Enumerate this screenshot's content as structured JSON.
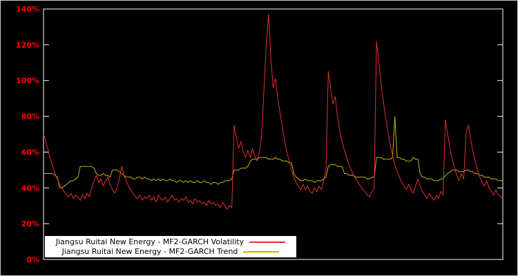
{
  "chart_data": {
    "type": "line",
    "title": "",
    "xlabel": "",
    "ylabel": "",
    "grid": false,
    "legend_position": "bottom-left",
    "background_color": "#000000",
    "border_color": "#ffffff",
    "axis_label_color": "#ff0000",
    "ylim": [
      0,
      140
    ],
    "yticks": [
      0,
      20,
      40,
      60,
      80,
      100,
      120,
      140
    ],
    "ytick_labels": [
      "0%",
      "20%",
      "40%",
      "60%",
      "80%",
      "100%",
      "120%",
      "140%"
    ],
    "series": [
      {
        "name": "Jiangsu Ruitai New Energy - MF2-GARCH Volatility",
        "color": "#e03131",
        "values": [
          70,
          66,
          61,
          56,
          52,
          48,
          45,
          42,
          40,
          38,
          36,
          35,
          37,
          34,
          36,
          35,
          33,
          36,
          34,
          37,
          35,
          40,
          44,
          47,
          43,
          45,
          41,
          44,
          46,
          42,
          39,
          37,
          40,
          45,
          52,
          47,
          44,
          41,
          39,
          37,
          35,
          34,
          36,
          33,
          35,
          34,
          36,
          33,
          35,
          32,
          36,
          34,
          33,
          35,
          32,
          34,
          36,
          33,
          34,
          32,
          34,
          33,
          35,
          32,
          33,
          31,
          34,
          32,
          33,
          31,
          32,
          30,
          33,
          31,
          32,
          30,
          31,
          29,
          32,
          30,
          28,
          30,
          29,
          75,
          68,
          62,
          66,
          60,
          57,
          61,
          57,
          62,
          58,
          55,
          60,
          70,
          95,
          120,
          137,
          112,
          96,
          101,
          90,
          82,
          74,
          66,
          60,
          55,
          50,
          46,
          43,
          41,
          39,
          42,
          39,
          41,
          38,
          37,
          40,
          38,
          41,
          39,
          44,
          50,
          105,
          96,
          87,
          91,
          80,
          72,
          66,
          61,
          57,
          53,
          50,
          47,
          45,
          43,
          41,
          39,
          38,
          36,
          35,
          38,
          40,
          122,
          110,
          98,
          88,
          79,
          71,
          64,
          58,
          53,
          49,
          46,
          43,
          41,
          39,
          42,
          39,
          37,
          41,
          45,
          41,
          38,
          36,
          34,
          37,
          35,
          33,
          36,
          34,
          38,
          36,
          78,
          70,
          62,
          56,
          51,
          47,
          44,
          48,
          45,
          71,
          75,
          67,
          60,
          55,
          50,
          46,
          43,
          41,
          44,
          40,
          38,
          36,
          39,
          36,
          35,
          34
        ]
      },
      {
        "name": "Jiangsu Ruitai New Energy - MF2-GARCH Trend",
        "color": "#c9b208",
        "values": [
          48,
          48,
          48,
          48,
          48,
          47,
          46,
          40,
          40,
          41,
          42,
          43,
          44,
          44,
          45,
          46,
          52,
          52,
          52,
          52,
          52,
          52,
          51,
          48,
          47,
          47,
          48,
          47,
          47,
          46,
          50,
          50,
          50,
          49,
          48,
          47,
          46,
          46,
          46,
          45,
          45,
          46,
          46,
          45,
          46,
          45,
          45,
          44,
          45,
          44,
          45,
          44,
          45,
          44,
          44,
          45,
          44,
          44,
          43,
          44,
          44,
          43,
          44,
          43,
          44,
          43,
          43,
          44,
          43,
          43,
          44,
          43,
          43,
          42,
          43,
          43,
          42,
          43,
          43,
          44,
          44,
          44,
          45,
          50,
          50,
          50,
          51,
          51,
          51,
          52,
          55,
          56,
          56,
          56,
          57,
          57,
          57,
          57,
          56,
          56,
          56,
          57,
          56,
          56,
          55,
          55,
          55,
          54,
          54,
          48,
          46,
          45,
          44,
          44,
          45,
          44,
          44,
          44,
          43,
          44,
          44,
          44,
          45,
          46,
          52,
          53,
          53,
          53,
          52,
          52,
          52,
          48,
          48,
          47,
          47,
          47,
          46,
          46,
          46,
          46,
          46,
          45,
          45,
          46,
          46,
          57,
          57,
          57,
          56,
          56,
          56,
          56,
          57,
          80,
          57,
          57,
          56,
          56,
          55,
          55,
          55,
          57,
          56,
          56,
          48,
          46,
          46,
          45,
          45,
          45,
          44,
          44,
          44,
          45,
          45,
          47,
          48,
          49,
          50,
          50,
          50,
          49,
          49,
          49,
          50,
          50,
          49,
          49,
          48,
          48,
          47,
          47,
          46,
          46,
          46,
          45,
          45,
          45,
          44,
          44,
          44
        ]
      }
    ]
  }
}
